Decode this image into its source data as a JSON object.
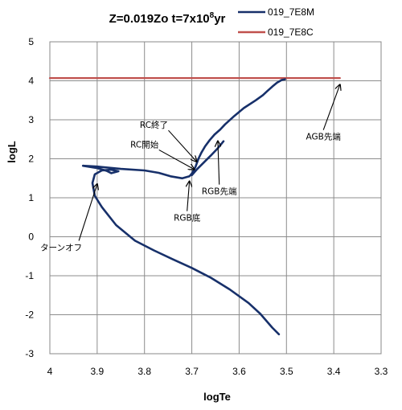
{
  "chart_data": {
    "type": "line",
    "title": {
      "prefix": "Z=0.019Zo t=7x10",
      "exponent": "8",
      "suffix": "yr"
    },
    "xlabel": "logTe",
    "ylabel": "logL",
    "xlim": [
      4,
      3.3
    ],
    "xreversed": true,
    "ylim": [
      -3,
      5
    ],
    "xticks": [
      "4",
      "3.9",
      "3.8",
      "3.7",
      "3.6",
      "3.5",
      "3.4",
      "3.3"
    ],
    "xtick_values": [
      4,
      3.9,
      3.8,
      3.7,
      3.6,
      3.5,
      3.4,
      3.3
    ],
    "yticks": [
      "-3",
      "-2",
      "-1",
      "0",
      "1",
      "2",
      "3",
      "4",
      "5"
    ],
    "ytick_values": [
      -3,
      -2,
      -1,
      0,
      1,
      2,
      3,
      4,
      5
    ],
    "grid": true,
    "legend_position": "top-right",
    "series": [
      {
        "name": "019_7E8M",
        "color": "#17306a",
        "x": [
          3.516,
          3.53,
          3.555,
          3.58,
          3.62,
          3.66,
          3.7,
          3.74,
          3.78,
          3.82,
          3.86,
          3.89,
          3.905,
          3.91,
          3.905,
          3.89,
          3.87,
          3.855,
          3.87,
          3.88,
          3.9,
          3.93,
          3.9,
          3.85,
          3.8,
          3.77,
          3.745,
          3.72,
          3.705,
          3.7,
          3.695,
          3.692,
          3.69,
          3.686,
          3.68,
          3.672,
          3.662,
          3.652,
          3.64,
          3.63,
          3.61,
          3.59,
          3.565,
          3.55,
          3.54,
          3.53,
          3.52,
          3.51,
          3.503
        ],
        "y": [
          -2.5,
          -2.33,
          -1.98,
          -1.7,
          -1.35,
          -1.05,
          -0.8,
          -0.58,
          -0.35,
          -0.1,
          0.3,
          0.76,
          1.05,
          1.38,
          1.6,
          1.7,
          1.72,
          1.68,
          1.63,
          1.69,
          1.76,
          1.82,
          1.8,
          1.74,
          1.7,
          1.64,
          1.55,
          1.5,
          1.55,
          1.62,
          1.73,
          1.8,
          1.87,
          2.0,
          2.15,
          2.32,
          2.48,
          2.62,
          2.75,
          2.88,
          3.1,
          3.3,
          3.5,
          3.63,
          3.74,
          3.85,
          3.95,
          4.02,
          4.04
        ]
      },
      {
        "name": "019_7E8C",
        "color": "#c0504d",
        "x": [
          4.0,
          3.387
        ],
        "y": [
          4.07,
          4.07
        ]
      },
      {
        "name": "",
        "color": "#17306a",
        "x": [
          3.7,
          3.69,
          3.675,
          3.66,
          3.645,
          3.633
        ],
        "y": [
          1.58,
          1.72,
          1.9,
          2.08,
          2.27,
          2.45
        ]
      }
    ],
    "annotations": [
      {
        "text": "ターンオフ",
        "x": 3.976,
        "y": -0.35,
        "tx": 3.9,
        "ty": 1.35
      },
      {
        "text": "RGB底",
        "x": 3.71,
        "y": 0.41,
        "tx": 3.705,
        "ty": 1.42
      },
      {
        "text": "RC開始",
        "x": 3.8,
        "y": 2.29,
        "tx": 3.695,
        "ty": 1.73
      },
      {
        "text": "RC終了",
        "x": 3.78,
        "y": 2.79,
        "tx": 3.69,
        "ty": 1.93
      },
      {
        "text": "RGB先端",
        "x": 3.642,
        "y": 1.09,
        "tx": 3.645,
        "ty": 2.45
      },
      {
        "text": "AGB先端",
        "x": 3.422,
        "y": 2.49,
        "tx": 3.387,
        "ty": 3.9
      }
    ]
  }
}
